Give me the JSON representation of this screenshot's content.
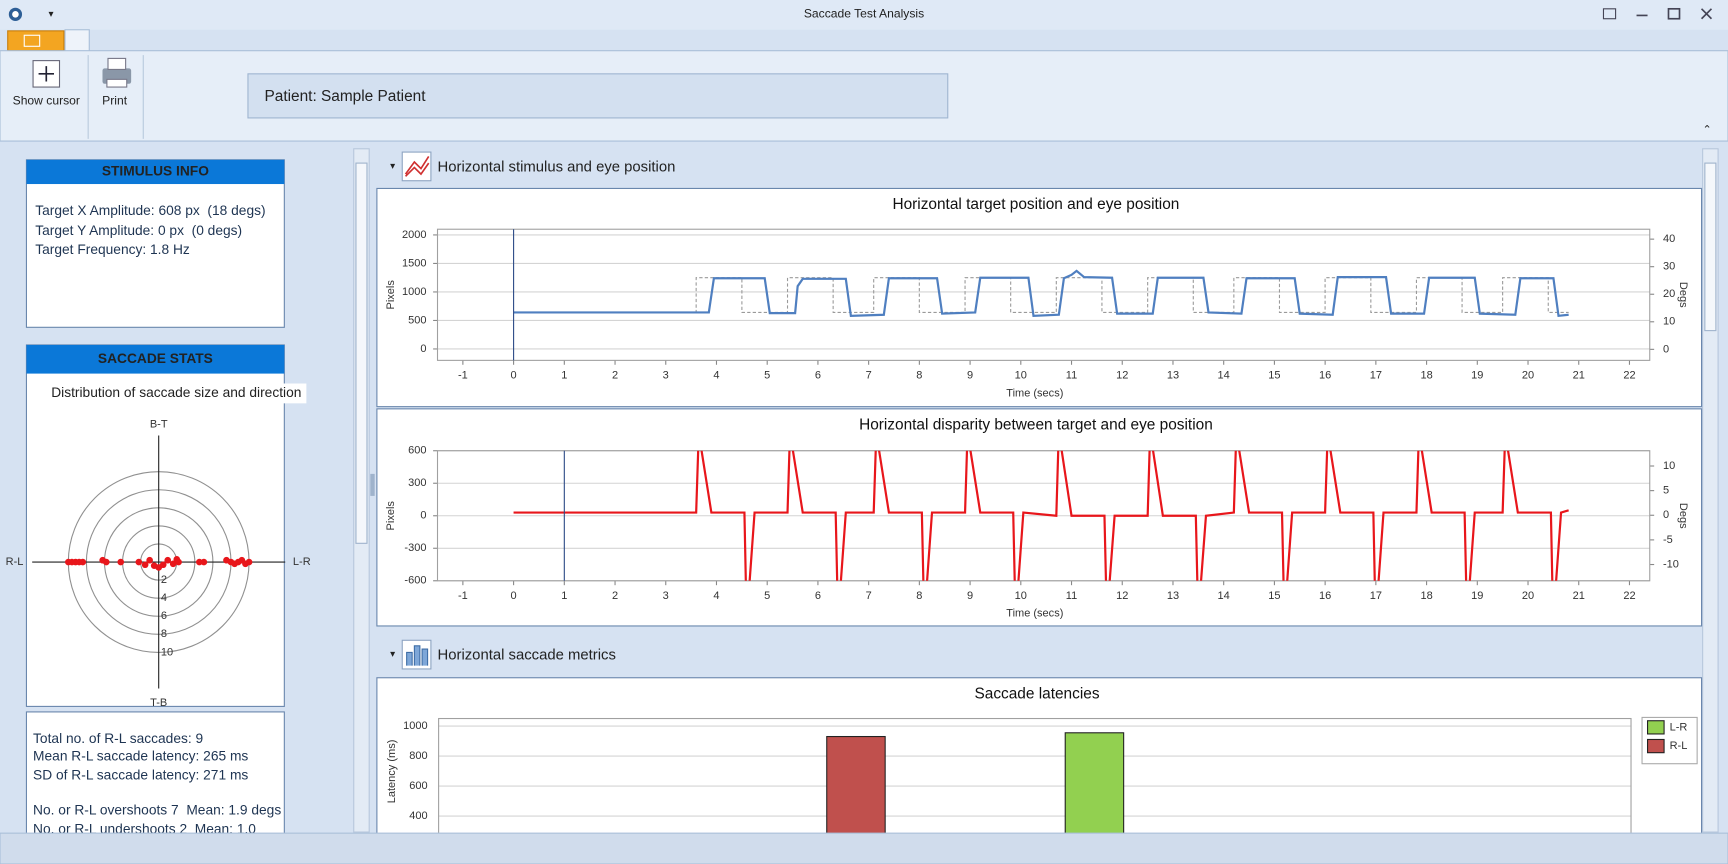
{
  "window": {
    "title": "Saccade Test Analysis"
  },
  "toolbar": {
    "buttons": [
      "Show cursor",
      "Print"
    ],
    "patient": "Patient: Sample Patient"
  },
  "stimulus_info": {
    "header": "STIMULUS INFO",
    "lines": [
      "Target X Amplitude: 608 px  (18 degs)",
      "Target Y Amplitude: 0 px  (0 degs)",
      "Target Frequency: 1.8 Hz"
    ]
  },
  "saccade_stats": {
    "header": "SACCADE STATS",
    "lines": [
      "Total no. of R-L saccades: 9",
      "Mean R-L saccade latency: 265 ms",
      "SD of R-L saccade latency: 271 ms",
      "No. or R-L overshoots 7  Mean: 1.9 degs",
      "No. or R-L undershoots 2  Mean: 1.0"
    ]
  },
  "sections": [
    "Horizontal stimulus and eye position",
    "Horizontal saccade metrics"
  ],
  "chart_data": [
    {
      "type": "line",
      "title": "Horizontal target position and eye position",
      "xlabel": "Time (secs)",
      "ylabel": "Pixels",
      "y2label": "Degs",
      "xlim": [
        -1.5,
        22.4
      ],
      "xticks": [
        -1,
        0,
        1,
        2,
        3,
        4,
        5,
        6,
        7,
        8,
        9,
        10,
        11,
        12,
        13,
        14,
        15,
        16,
        17,
        18,
        19,
        20,
        21,
        22
      ],
      "ylim": [
        -200,
        2100
      ],
      "yticks": [
        0,
        500,
        1000,
        1500,
        2000
      ],
      "y2lim": [
        -4,
        43.6
      ],
      "y2ticks": [
        0,
        10,
        20,
        30,
        40
      ],
      "grid": true,
      "cursor_x": 0,
      "series": [
        {
          "color": "#9a9a9a",
          "line_style": "dashed",
          "x": [
            0,
            3.6,
            3.6,
            4.5,
            4.5,
            5.4,
            5.4,
            6.3,
            6.3,
            7.1,
            7.1,
            8.0,
            8.0,
            8.9,
            8.9,
            9.8,
            9.8,
            10.7,
            10.7,
            11.6,
            11.6,
            12.5,
            12.5,
            13.4,
            13.4,
            14.2,
            14.2,
            15.1,
            15.1,
            16.0,
            16.0,
            16.9,
            16.9,
            17.8,
            17.8,
            18.7,
            18.7,
            19.5,
            19.5,
            20.4,
            20.4,
            20.8
          ],
          "values": [
            640,
            640,
            1250,
            1250,
            640,
            640,
            1250,
            1250,
            640,
            640,
            1250,
            1250,
            640,
            640,
            1250,
            1250,
            640,
            640,
            1250,
            1250,
            640,
            640,
            1250,
            1250,
            640,
            640,
            1250,
            1250,
            640,
            640,
            1250,
            1250,
            640,
            640,
            1250,
            1250,
            640,
            640,
            1250,
            1250,
            640,
            640
          ]
        },
        {
          "color": "#4f7fc0",
          "line_style": "solid",
          "x": [
            0,
            3.85,
            3.95,
            4.95,
            5.05,
            5.55,
            5.6,
            5.7,
            6.55,
            6.65,
            7.3,
            7.4,
            8.35,
            8.45,
            9.1,
            9.2,
            10.15,
            10.25,
            10.75,
            10.85,
            11.0,
            11.1,
            11.25,
            11.8,
            11.9,
            12.6,
            12.7,
            13.6,
            13.7,
            14.35,
            14.45,
            15.4,
            15.5,
            16.15,
            16.25,
            17.2,
            17.3,
            17.95,
            18.05,
            18.95,
            19.05,
            19.75,
            19.85,
            20.5,
            20.6,
            20.8
          ],
          "values": [
            640,
            640,
            1240,
            1240,
            630,
            630,
            1100,
            1230,
            1230,
            580,
            600,
            1240,
            1240,
            620,
            640,
            1250,
            1250,
            580,
            600,
            1240,
            1300,
            1370,
            1260,
            1250,
            620,
            620,
            1250,
            1250,
            640,
            620,
            1240,
            1240,
            620,
            600,
            1260,
            1260,
            620,
            620,
            1250,
            1250,
            620,
            600,
            1240,
            1240,
            580,
            600
          ]
        }
      ]
    },
    {
      "type": "line",
      "title": "Horizontal disparity between target and eye position",
      "xlabel": "Time (secs)",
      "ylabel": "Pixels",
      "y2label": "Degs",
      "xlim": [
        -1.5,
        22.4
      ],
      "xticks": [
        -1,
        0,
        1,
        2,
        3,
        4,
        5,
        6,
        7,
        8,
        9,
        10,
        11,
        12,
        13,
        14,
        15,
        16,
        17,
        18,
        19,
        20,
        21,
        22
      ],
      "ylim": [
        -600,
        600
      ],
      "yticks": [
        -600,
        -300,
        0,
        300,
        600
      ],
      "y2lim": [
        -13.3,
        13.1
      ],
      "y2ticks": [
        -10,
        -5,
        0,
        5,
        10
      ],
      "grid": true,
      "cursor_x": 1,
      "series": [
        {
          "color": "#e8161b",
          "line_style": "solid",
          "x": [
            0,
            3.6,
            3.64,
            3.7,
            3.9,
            4.55,
            4.58,
            4.65,
            4.75,
            5.4,
            5.44,
            5.5,
            5.7,
            6.35,
            6.38,
            6.45,
            6.55,
            7.1,
            7.14,
            7.2,
            7.4,
            8.05,
            8.08,
            8.15,
            8.25,
            8.9,
            8.94,
            9.0,
            9.2,
            9.85,
            9.88,
            9.95,
            10.05,
            10.7,
            10.74,
            10.8,
            11.0,
            11.65,
            11.68,
            11.75,
            11.85,
            12.5,
            12.54,
            12.6,
            12.8,
            13.45,
            13.48,
            13.55,
            13.65,
            14.2,
            14.24,
            14.3,
            14.5,
            15.15,
            15.18,
            15.25,
            15.35,
            16.0,
            16.04,
            16.1,
            16.3,
            16.95,
            16.98,
            17.05,
            17.15,
            17.8,
            17.84,
            17.9,
            18.1,
            18.75,
            18.78,
            18.85,
            18.95,
            19.5,
            19.54,
            19.6,
            19.8,
            20.45,
            20.48,
            20.55,
            20.65,
            20.8
          ],
          "values": [
            30,
            30,
            620,
            620,
            30,
            30,
            -620,
            -620,
            30,
            30,
            620,
            620,
            30,
            30,
            -620,
            -620,
            30,
            30,
            620,
            620,
            30,
            30,
            -620,
            -620,
            30,
            30,
            620,
            620,
            30,
            30,
            -620,
            -620,
            30,
            0,
            620,
            620,
            0,
            0,
            -620,
            -620,
            0,
            0,
            620,
            620,
            0,
            0,
            -620,
            -620,
            0,
            30,
            620,
            620,
            30,
            30,
            -620,
            -620,
            30,
            30,
            620,
            620,
            30,
            30,
            -620,
            -620,
            30,
            30,
            620,
            620,
            30,
            30,
            -620,
            -620,
            30,
            30,
            620,
            620,
            30,
            30,
            -620,
            -620,
            30,
            50
          ]
        }
      ]
    },
    {
      "type": "polar_scatter",
      "title": "Distribution of saccade size and direction",
      "direction_labels": {
        "top": "B-T",
        "bottom": "T-B",
        "left": "R-L",
        "right": "L-R"
      },
      "rticks": [
        2,
        4,
        6,
        8,
        10
      ],
      "xlim": [
        -14,
        14
      ],
      "ylim": [
        -14,
        14
      ],
      "color": "#e8161b",
      "x": [
        -10,
        -9.6,
        -9.2,
        -8.8,
        -8.4,
        -6.2,
        -5.8,
        -4.2,
        -2.2,
        -1.5,
        -1,
        -0.5,
        0,
        0.5,
        1,
        1.6,
        2.2,
        2,
        4.5,
        5,
        7.5,
        8,
        8.4,
        8.8,
        9.2,
        9.6,
        10
      ],
      "y": [
        0,
        0,
        0,
        0,
        0,
        0.2,
        0,
        0,
        0,
        -0.3,
        0.2,
        -0.4,
        -0.6,
        -0.3,
        0.2,
        -0.2,
        0,
        0.3,
        0,
        0,
        0.2,
        0,
        -0.2,
        0,
        0.2,
        -0.2,
        0
      ]
    },
    {
      "type": "bar",
      "title": "Saccade latencies",
      "ylabel": "Latency (ms)",
      "categories": [
        null,
        null,
        null,
        null,
        null,
        null,
        null,
        null,
        null,
        null
      ],
      "ylim": [
        0,
        1050
      ],
      "yticks": [
        400,
        600,
        800,
        1000
      ],
      "grid": true,
      "legend": "top-right",
      "series": [
        {
          "name": "L-R",
          "color": "#92d050",
          "values": [
            null,
            null,
            null,
            null,
            null,
            955,
            null,
            null,
            null,
            null
          ]
        },
        {
          "name": "R-L",
          "color": "#c0504d",
          "values": [
            null,
            null,
            null,
            930,
            null,
            null,
            null,
            null,
            null,
            null
          ]
        }
      ]
    }
  ]
}
